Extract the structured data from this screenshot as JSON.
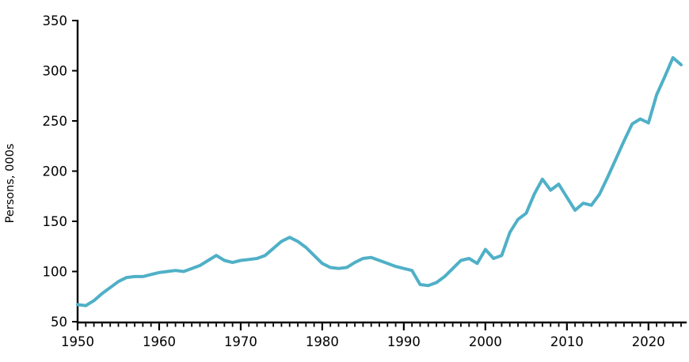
{
  "chart_data": {
    "type": "line",
    "title": "",
    "xlabel": "",
    "ylabel": "Persons, 000s",
    "xlim": [
      1950,
      2024
    ],
    "ylim": [
      50,
      350
    ],
    "y_ticks": [
      50,
      100,
      150,
      200,
      250,
      300,
      350
    ],
    "x_major_ticks": [
      1950,
      1960,
      1970,
      1980,
      1990,
      2000,
      2010,
      2020
    ],
    "x_minor_tick_interval_years": 1,
    "grid": false,
    "legend": false,
    "line_color": "#4FB0C7",
    "axis_color": "#000000",
    "text_color": "#000000",
    "x": [
      1950,
      1951,
      1952,
      1953,
      1954,
      1955,
      1956,
      1957,
      1958,
      1959,
      1960,
      1961,
      1962,
      1963,
      1964,
      1965,
      1966,
      1967,
      1968,
      1969,
      1970,
      1971,
      1972,
      1973,
      1974,
      1975,
      1976,
      1977,
      1978,
      1979,
      1980,
      1981,
      1982,
      1983,
      1984,
      1985,
      1986,
      1987,
      1988,
      1989,
      1990,
      1991,
      1992,
      1993,
      1994,
      1995,
      1996,
      1997,
      1998,
      1999,
      2000,
      2001,
      2002,
      2003,
      2004,
      2005,
      2006,
      2007,
      2008,
      2009,
      2010,
      2011,
      2012,
      2013,
      2014,
      2015,
      2016,
      2017,
      2018,
      2019,
      2020,
      2021,
      2022,
      2023,
      2024
    ],
    "series": [
      {
        "name": "Persons, 000s",
        "values": [
          67,
          66,
          71,
          78,
          84,
          90,
          94,
          95,
          95,
          97,
          99,
          100,
          101,
          100,
          103,
          106,
          111,
          116,
          111,
          109,
          111,
          112,
          113,
          116,
          123,
          130,
          134,
          130,
          124,
          116,
          108,
          104,
          103,
          104,
          109,
          113,
          114,
          111,
          108,
          105,
          103,
          101,
          87,
          86,
          89,
          95,
          103,
          111,
          113,
          108,
          122,
          113,
          116,
          139,
          152,
          158,
          177,
          192,
          181,
          187,
          174,
          161,
          168,
          166,
          177,
          194,
          212,
          230,
          247,
          252,
          248,
          276,
          294,
          313,
          306
        ]
      }
    ]
  }
}
